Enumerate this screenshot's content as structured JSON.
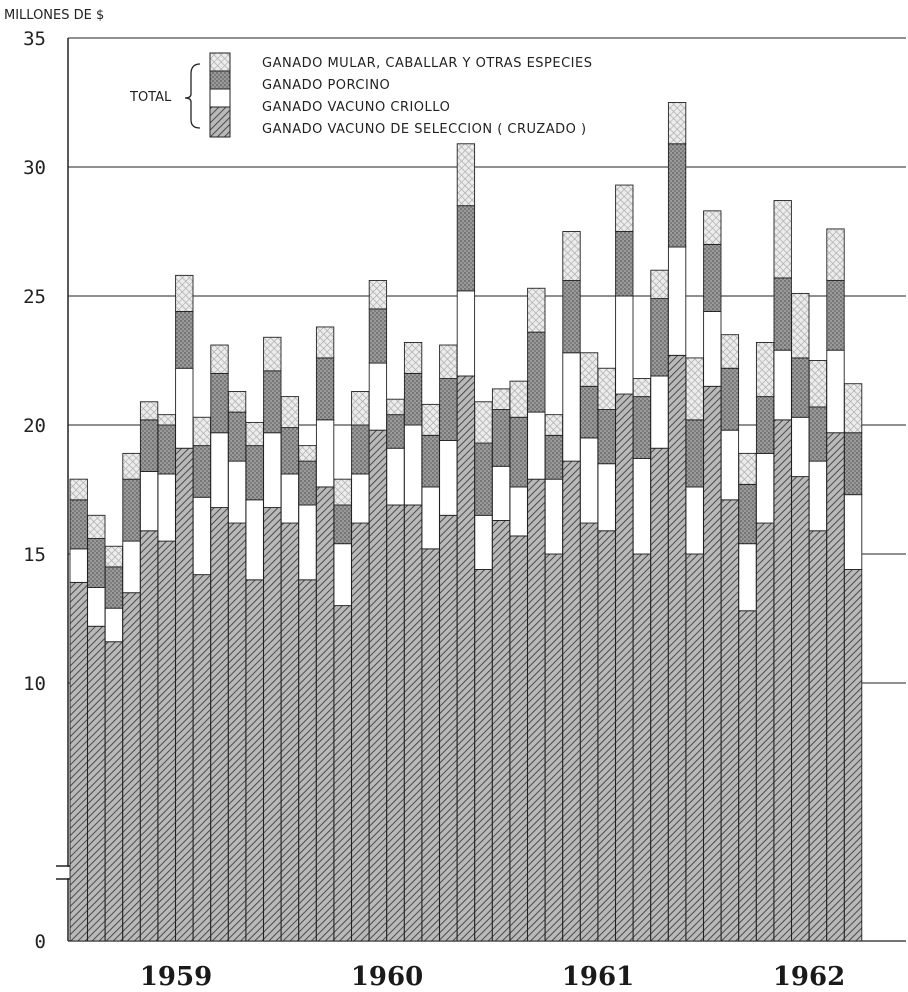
{
  "chart_data": {
    "type": "bar",
    "stacked": true,
    "ylabel": "MILLONES DE $",
    "ylim": [
      0,
      35
    ],
    "y_axis_break": true,
    "y_ticks": [
      "0",
      "10",
      "15",
      "20",
      "25",
      "30",
      "35"
    ],
    "x_tick_labels": [
      "1959",
      "1960",
      "1961",
      "1962"
    ],
    "grid": "horizontal",
    "legend": {
      "position": "top-left",
      "group_label": "TOTAL",
      "entries": [
        "GANADO MULAR, CABALLAR Y OTRAS ESPECIES",
        "GANADO PORCINO",
        "GANADO VACUNO CRIOLLO",
        "GANADO VACUNO DE SELECCION ( CRUZADO )"
      ]
    },
    "series": [
      {
        "name": "GANADO VACUNO DE SELECCION ( CRUZADO )",
        "key": "seleccion",
        "values": [
          13.9,
          12.2,
          11.6,
          13.5,
          15.9,
          15.5,
          19.1,
          14.2,
          16.8,
          16.2,
          14.0,
          16.8,
          16.2,
          14.0,
          17.6,
          13.0,
          16.2,
          19.8,
          16.9,
          16.9,
          15.2,
          16.5,
          21.9,
          14.4,
          16.3,
          15.7,
          17.9,
          15.0,
          18.6,
          16.2,
          15.9,
          21.2,
          15.0,
          19.1,
          22.7,
          15.0,
          21.5,
          17.1,
          12.8,
          16.2,
          20.2,
          18.0,
          15.9,
          19.7,
          14.4
        ]
      },
      {
        "name": "GANADO VACUNO CRIOLLO",
        "key": "criollo",
        "values": [
          1.3,
          1.5,
          1.3,
          2.0,
          2.3,
          2.6,
          3.1,
          3.0,
          2.9,
          2.4,
          3.1,
          2.9,
          1.9,
          2.9,
          2.6,
          2.4,
          1.9,
          2.6,
          2.2,
          3.1,
          2.4,
          2.9,
          3.3,
          2.1,
          2.1,
          1.9,
          2.6,
          2.9,
          4.2,
          3.3,
          2.6,
          3.8,
          3.7,
          2.8,
          4.2,
          2.6,
          2.9,
          2.7,
          2.6,
          2.7,
          2.7,
          2.3,
          2.7,
          3.2,
          2.9
        ]
      },
      {
        "name": "GANADO PORCINO",
        "key": "porcino",
        "values": [
          1.9,
          1.9,
          1.6,
          2.4,
          2.0,
          1.9,
          2.2,
          2.0,
          2.3,
          1.9,
          2.1,
          2.4,
          1.8,
          1.7,
          2.4,
          1.5,
          1.9,
          2.1,
          1.3,
          2.0,
          2.0,
          2.4,
          3.3,
          2.8,
          2.2,
          2.7,
          3.1,
          1.7,
          2.8,
          2.0,
          2.1,
          2.5,
          2.4,
          3.0,
          4.0,
          2.6,
          2.6,
          2.4,
          2.3,
          2.2,
          2.8,
          2.3,
          2.1,
          2.7,
          2.4
        ]
      },
      {
        "name": "GANADO MULAR, CABALLAR Y OTRAS ESPECIES",
        "key": "mular",
        "values": [
          0.8,
          0.9,
          0.8,
          1.0,
          0.7,
          0.4,
          1.4,
          1.1,
          1.1,
          0.8,
          0.9,
          1.3,
          1.2,
          0.6,
          1.2,
          1.0,
          1.3,
          1.1,
          0.6,
          1.2,
          1.2,
          1.3,
          2.4,
          1.6,
          0.8,
          1.4,
          1.7,
          0.8,
          1.9,
          1.3,
          1.6,
          1.8,
          0.7,
          1.1,
          1.6,
          2.4,
          1.3,
          1.3,
          1.2,
          2.1,
          3.0,
          2.5,
          1.8,
          2.0,
          1.9
        ]
      }
    ]
  },
  "colors": {
    "background": "#ffffff",
    "ink": "#222222",
    "seleccion": "#8f8f8f",
    "criollo": "#ffffff",
    "porcino": "#8c8c8c",
    "mular": "#e3e3e3"
  }
}
